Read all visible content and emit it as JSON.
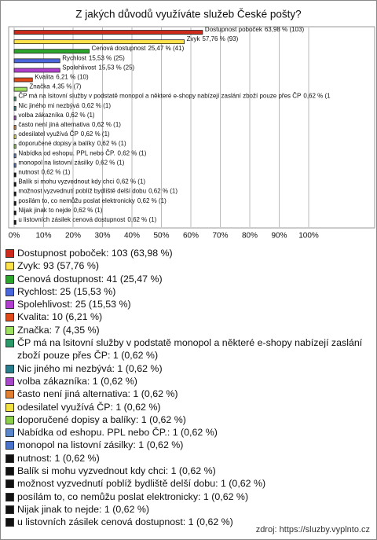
{
  "chart_data": {
    "type": "bar",
    "orientation": "horizontal",
    "title": "Z jakých důvodů využíváte služeb České pošty?",
    "categories": [
      "Dostupnost poboček",
      "Zvyk",
      "Cenová dostupnost",
      "Rychlost",
      "Spolehlivost",
      "Kvalita",
      "Značka",
      "ČP má na lsitovní služby v podstatě monopol a některé e-shopy nabízejí zaslání zboží pouze přes ČP",
      "Nic jiného mi nezbývá",
      "volba zákazníka",
      "často není jiná alternativa",
      "odesilatel využívá ČP",
      "doporučené dopisy a balíky",
      "Nabídka od eshopu. PPL nebo ČP.",
      "monopol na listovní zásilky",
      "nutnost",
      "Balík si mohu vyzvednout kdy chci",
      "možnost vyzvednutí poblíž bydliště delší dobu",
      "posílám to, co nemůžu poslat elektronicky",
      "Nijak jinak to nejde",
      "u listovních zásilek cenová dostupnost"
    ],
    "values": [
      63.98,
      57.76,
      25.47,
      15.53,
      15.53,
      6.21,
      4.35,
      0.62,
      0.62,
      0.62,
      0.62,
      0.62,
      0.62,
      0.62,
      0.62,
      0.62,
      0.62,
      0.62,
      0.62,
      0.62,
      0.62
    ],
    "value_labels": [
      "63,98 % (103)",
      "57,76 % (93)",
      "25,47 % (41)",
      "15,53 % (25)",
      "15,53 % (25)",
      "6,21 % (10)",
      "4,35 % (7)",
      "0,62 % (1",
      "0,62 % (1)",
      "0,62 % (1)",
      "0,62 % (1)",
      "0,62 % (1)",
      "0,62 % (1)",
      "0,62 % (1)",
      "0,62 % (1)",
      "0,62 % (1)",
      "0,62 % (1)",
      "0,62 % (1)",
      "0,62 % (1)",
      "0,62 % (1)",
      "0,62 % (1)"
    ],
    "colors": [
      "#cc2a1a",
      "#ffe24a",
      "#2ca52c",
      "#4a66dd",
      "#b23ed0",
      "#e04a18",
      "#9ee060",
      "#2a9a6a",
      "#2a7f8f",
      "#a848c8",
      "#e08030",
      "#f0e040",
      "#8ccf48",
      "#5a86cc",
      "#4a74cc",
      "#111111",
      "#111111",
      "#111111",
      "#111111",
      "#111111",
      "#111111"
    ],
    "xlim": [
      0,
      100
    ],
    "xticks": [
      {
        "value": 0,
        "label": "0%"
      },
      {
        "value": 10,
        "label": "10%"
      },
      {
        "value": 20,
        "label": "20%"
      },
      {
        "value": 30,
        "label": "30%"
      },
      {
        "value": 40,
        "label": "40%"
      },
      {
        "value": 50,
        "label": "50%"
      },
      {
        "value": 60,
        "label": "60%"
      },
      {
        "value": 70,
        "label": "70%"
      },
      {
        "value": 80,
        "label": "80%"
      },
      {
        "value": 90,
        "label": "90%"
      },
      {
        "value": 100,
        "label": "100%"
      }
    ],
    "grid": true,
    "legend": [
      "Dostupnost poboček: 103 (63,98 %)",
      "Zvyk: 93 (57,76 %)",
      "Cenová dostupnost: 41 (25,47 %)",
      "Rychlost: 25 (15,53 %)",
      "Spolehlivost: 25 (15,53 %)",
      "Kvalita: 10 (6,21 %)",
      "Značka: 7 (4,35 %)",
      "ČP má na lsitovní služby v podstatě monopol a některé e-shopy nabízejí zaslání zboží pouze přes ČP: 1 (0,62 %)",
      "Nic jiného mi nezbývá: 1 (0,62 %)",
      "volba zákazníka: 1 (0,62 %)",
      "často není jiná alternativa: 1 (0,62 %)",
      "odesilatel využívá ČP: 1 (0,62 %)",
      "doporučené dopisy a balíky: 1 (0,62 %)",
      "Nabídka od eshopu. PPL nebo ČP.: 1 (0,62 %)",
      "monopol na listovní zásilky: 1 (0,62 %)",
      "nutnost: 1 (0,62 %)",
      "Balík si mohu vyzvednout kdy chci: 1 (0,62 %)",
      "možnost vyzvednutí poblíž bydliště delší dobu: 1 (0,62 %)",
      "posílám to, co nemůžu poslat elektronicky: 1 (0,62 %)",
      "Nijak jinak to nejde: 1 (0,62 %)",
      "u listovních zásilek cenová dostupnost: 1 (0,62 %)"
    ],
    "source": "zdroj: https://sluzby.vyplnto.cz"
  }
}
